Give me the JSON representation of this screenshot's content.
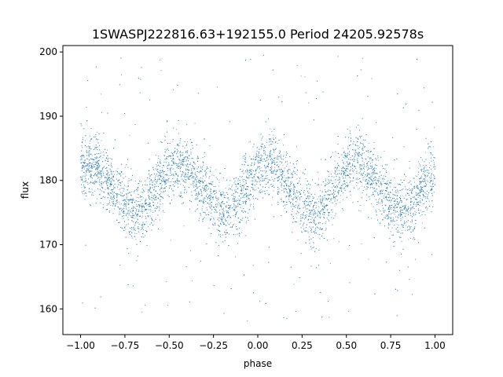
{
  "chart_data": {
    "type": "scatter",
    "title": "1SWASPJ222816.63+192155.0 Period 24205.92578s",
    "xlabel": "phase",
    "ylabel": "flux",
    "xlim": [
      -1.1,
      1.1
    ],
    "ylim": [
      156.0,
      201.0
    ],
    "x_ticks": [
      -1.0,
      -0.75,
      -0.5,
      -0.25,
      0.0,
      0.25,
      0.5,
      0.75,
      1.0
    ],
    "x_tick_labels": [
      "−1.00",
      "−0.75",
      "−0.50",
      "−0.25",
      "0.00",
      "0.25",
      "0.50",
      "0.75",
      "1.00"
    ],
    "y_ticks": [
      160,
      170,
      180,
      190,
      200
    ],
    "y_tick_labels": [
      "160",
      "170",
      "180",
      "190",
      "200"
    ],
    "grid": false,
    "legend": "none",
    "series": [
      {
        "color": "#1f77b4",
        "x": [
          -1.0,
          -0.95,
          -0.9,
          -0.85,
          -0.8,
          -0.75,
          -0.7,
          -0.65,
          -0.6,
          -0.55,
          -0.5,
          -0.45,
          -0.4,
          -0.35,
          -0.3,
          -0.25,
          -0.2,
          -0.15,
          -0.1,
          -0.05,
          0.0,
          0.05,
          0.1,
          0.15,
          0.2,
          0.25,
          0.3,
          0.35,
          0.4,
          0.45,
          0.5,
          0.55,
          0.6,
          0.65,
          0.7,
          0.75,
          0.8,
          0.85,
          0.9,
          0.95,
          1.0
        ],
        "y_center": [
          181.5,
          182.5,
          182.0,
          180.5,
          178.5,
          176.5,
          175.0,
          175.5,
          177.5,
          179.8,
          181.5,
          182.6,
          182.0,
          180.3,
          178.2,
          176.3,
          175.0,
          175.5,
          177.5,
          179.8,
          181.5,
          182.5,
          182.0,
          180.3,
          178.2,
          176.3,
          175.0,
          175.5,
          177.5,
          179.8,
          181.5,
          182.6,
          182.0,
          180.3,
          178.2,
          176.3,
          175.0,
          175.5,
          177.5,
          179.8,
          181.5
        ],
        "band_half_width": 4.5,
        "outlier_range": [
          158.0,
          200.0
        ]
      }
    ]
  }
}
